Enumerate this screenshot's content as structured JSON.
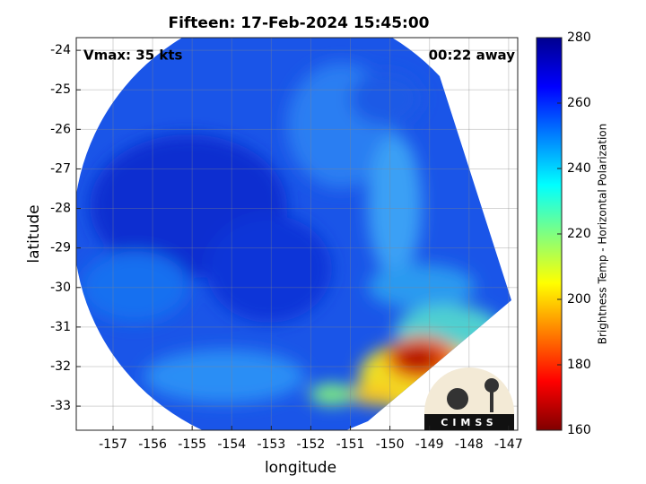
{
  "chart_data": {
    "type": "map",
    "title": "Fifteen: 17-Feb-2024 15:45:00",
    "annotations": [
      "Vmax: 35 kts",
      "00:22 away"
    ],
    "xlabel": "longitude",
    "ylabel": "latitude",
    "xlim": [
      -157.93,
      -146.77
    ],
    "ylim": [
      -33.61,
      -23.68
    ],
    "xticks": [
      -157,
      -156,
      -155,
      -154,
      -153,
      -152,
      -151,
      -150,
      -149,
      -148,
      -147
    ],
    "yticks": [
      -24,
      -25,
      -26,
      -27,
      -28,
      -29,
      -30,
      -31,
      -32,
      -33
    ],
    "grid": true,
    "colorbar": {
      "label": "Brightness Temp - Horizontal Polarization",
      "lim": [
        160,
        280
      ],
      "ticks": [
        160,
        180,
        200,
        220,
        240,
        260,
        280
      ],
      "colors": [
        "#800000",
        "#ff0000",
        "#ff8000",
        "#ffff00",
        "#80ff80",
        "#00ffff",
        "#0080ff",
        "#0000ff",
        "#00008f"
      ]
    },
    "logo": "CIMSS"
  }
}
